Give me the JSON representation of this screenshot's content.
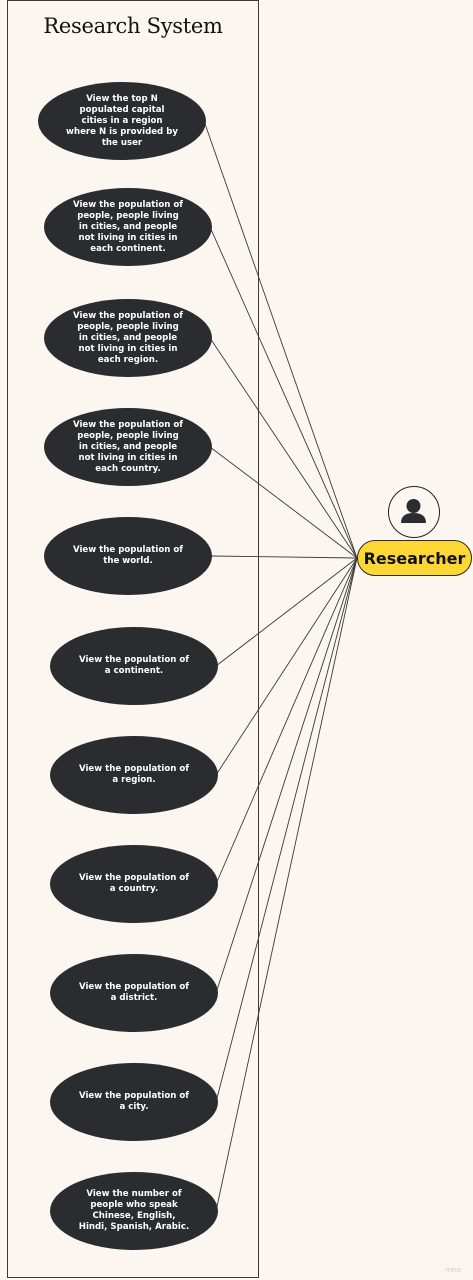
{
  "system_title": "Research System",
  "actor": {
    "label": "Researcher",
    "icon": "person-icon"
  },
  "use_cases": [
    {
      "id": "uc-1",
      "label": "View the top N populated capital cities in a region where N is provided by the user"
    },
    {
      "id": "uc-2",
      "label": "View the population of people, people living in cities, and people not living in cities in each continent."
    },
    {
      "id": "uc-3",
      "label": "View the population of people, people living in cities, and people not living in cities in each region."
    },
    {
      "id": "uc-4",
      "label": "View the population of people, people living in cities, and people not living in cities in each country."
    },
    {
      "id": "uc-5",
      "label": "View the population of the world."
    },
    {
      "id": "uc-6",
      "label": "View the population of a continent."
    },
    {
      "id": "uc-7",
      "label": "View the population of a region."
    },
    {
      "id": "uc-8",
      "label": "View the population of a country."
    },
    {
      "id": "uc-9",
      "label": "View the population of a district."
    },
    {
      "id": "uc-10",
      "label": "View the population of a city."
    },
    {
      "id": "uc-11",
      "label": "View the number of people who speak Chinese, English, Hindi, Spanish, Arabic."
    }
  ],
  "watermark": "miro",
  "colors": {
    "background": "#fbf6ef",
    "usecase_fill": "#2b2c30",
    "actor_fill": "#fdd835"
  }
}
